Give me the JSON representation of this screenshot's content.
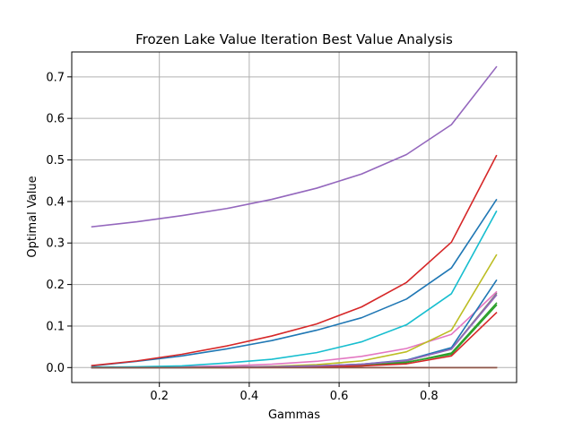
{
  "chart_data": {
    "type": "line",
    "title": "Frozen Lake Value Iteration Best Value Analysis",
    "xlabel": "Gammas",
    "ylabel": "Optimal Value",
    "xlim": [
      0.005,
      0.995
    ],
    "ylim": [
      -0.036,
      0.76
    ],
    "grid": true,
    "x": [
      0.05,
      0.15,
      0.25,
      0.35,
      0.45,
      0.55,
      0.65,
      0.75,
      0.85,
      0.95
    ],
    "xticks": [
      0.2,
      0.4,
      0.6,
      0.8
    ],
    "xtick_labels": [
      "0.2",
      "0.4",
      "0.6",
      "0.8"
    ],
    "yticks": [
      0.0,
      0.1,
      0.2,
      0.3,
      0.4,
      0.5,
      0.6,
      0.7
    ],
    "ytick_labels": [
      "0.0",
      "0.1",
      "0.2",
      "0.3",
      "0.4",
      "0.5",
      "0.6",
      "0.7"
    ],
    "series": [
      {
        "color": "#1f77b4",
        "values": [
          0.004,
          0.015,
          0.028,
          0.045,
          0.065,
          0.09,
          0.12,
          0.165,
          0.24,
          0.404
        ]
      },
      {
        "color": "#ff7f0e",
        "values": [
          0.0,
          0.0,
          0.0,
          0.0,
          0.0,
          0.0,
          0.0,
          0.0,
          0.0,
          0.0
        ]
      },
      {
        "color": "#2ca02c",
        "values": [
          0.0,
          0.0,
          0.0,
          0.0,
          0.001,
          0.002,
          0.004,
          0.012,
          0.035,
          0.155
        ]
      },
      {
        "color": "#d62728",
        "values": [
          0.005,
          0.016,
          0.032,
          0.052,
          0.076,
          0.105,
          0.146,
          0.205,
          0.302,
          0.51
        ]
      },
      {
        "color": "#9467bd",
        "values": [
          0.339,
          0.351,
          0.366,
          0.383,
          0.405,
          0.432,
          0.466,
          0.513,
          0.585,
          0.724
        ]
      },
      {
        "color": "#8c564b",
        "values": [
          0.0,
          0.0,
          0.0,
          0.0,
          0.0,
          0.0,
          0.0,
          0.0,
          0.0,
          0.0
        ]
      },
      {
        "color": "#e377c2",
        "values": [
          0.0,
          0.001,
          0.002,
          0.004,
          0.008,
          0.015,
          0.027,
          0.046,
          0.08,
          0.182
        ]
      },
      {
        "color": "#7f7f7f",
        "values": [
          0.0,
          0.0,
          0.0,
          0.001,
          0.002,
          0.004,
          0.008,
          0.016,
          0.045,
          0.178
        ]
      },
      {
        "color": "#bcbd22",
        "values": [
          0.0,
          0.0,
          0.0,
          0.001,
          0.003,
          0.007,
          0.016,
          0.038,
          0.09,
          0.271
        ]
      },
      {
        "color": "#17becf",
        "values": [
          0.001,
          0.002,
          0.004,
          0.011,
          0.02,
          0.036,
          0.062,
          0.103,
          0.178,
          0.376
        ]
      },
      {
        "color": "#1f77b4",
        "values": [
          0.0,
          0.0,
          0.0,
          0.001,
          0.002,
          0.004,
          0.008,
          0.018,
          0.048,
          0.21
        ]
      },
      {
        "color": "#2ca02c",
        "values": [
          0.0,
          0.0,
          0.0,
          0.0,
          0.001,
          0.002,
          0.005,
          0.013,
          0.032,
          0.15
        ]
      },
      {
        "color": "#d62728",
        "values": [
          0.0,
          0.0,
          0.0,
          0.0,
          0.001,
          0.002,
          0.004,
          0.009,
          0.028,
          0.132
        ]
      },
      {
        "color": "#9467bd",
        "values": [
          0.0,
          0.0,
          0.0,
          0.001,
          0.002,
          0.004,
          0.008,
          0.017,
          0.044,
          0.174
        ]
      },
      {
        "color": "#8c564b",
        "values": [
          0.0,
          0.0,
          0.0,
          0.0,
          0.0,
          0.0,
          0.0,
          0.0,
          0.0,
          0.0
        ]
      }
    ]
  }
}
